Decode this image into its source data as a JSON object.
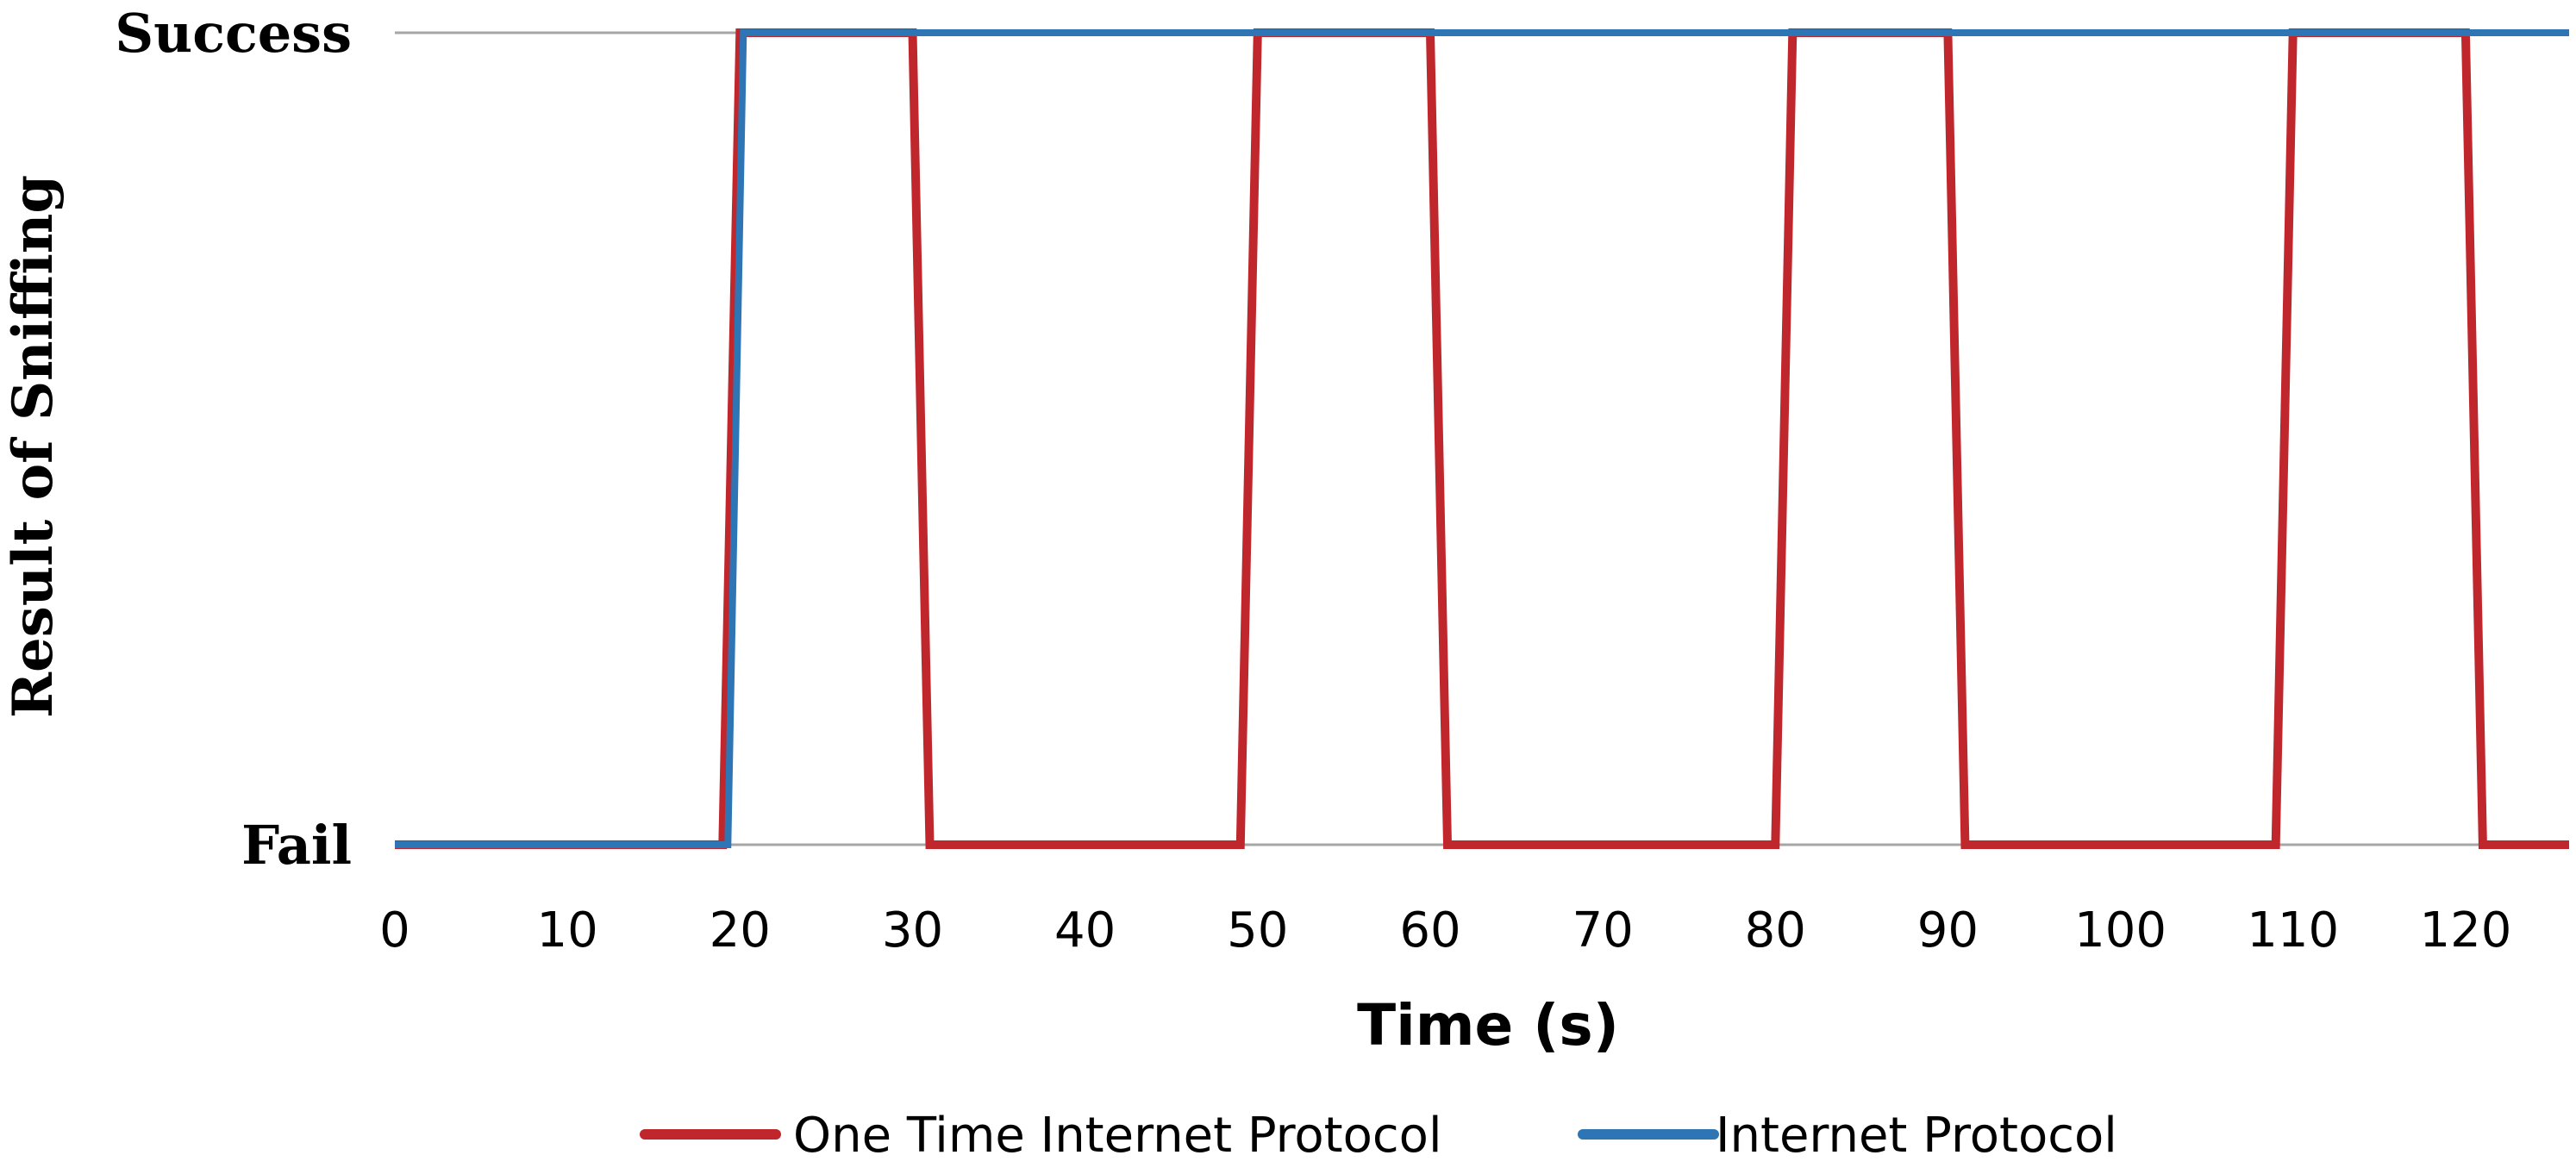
{
  "chart_data": {
    "type": "line",
    "title": "",
    "xlabel": "Time (s)",
    "ylabel": "Result of Sniffing",
    "xlim": [
      0,
      126
    ],
    "x_ticks": [
      "0",
      "10",
      "20",
      "30",
      "40",
      "50",
      "60",
      "70",
      "80",
      "90",
      "100",
      "110",
      "120"
    ],
    "y_categories": [
      "Fail",
      "Success"
    ],
    "ylim": [
      0,
      1
    ],
    "grid": "horizontal",
    "legend_position": "bottom",
    "series": [
      {
        "name": "One Time Internet Protocol",
        "color": "#c0272d",
        "points": [
          [
            0,
            0
          ],
          [
            19,
            0
          ],
          [
            20,
            1
          ],
          [
            30,
            1
          ],
          [
            31,
            0
          ],
          [
            49,
            0
          ],
          [
            50,
            1
          ],
          [
            60,
            1
          ],
          [
            61,
            0
          ],
          [
            80,
            0
          ],
          [
            81,
            1
          ],
          [
            90,
            1
          ],
          [
            91,
            0
          ],
          [
            109,
            0
          ],
          [
            110,
            1
          ],
          [
            120,
            1
          ],
          [
            121,
            0
          ],
          [
            126,
            0
          ]
        ]
      },
      {
        "name": "Internet Protocol",
        "color": "#2e75b6",
        "points": [
          [
            0,
            0
          ],
          [
            19.3,
            0
          ],
          [
            20.2,
            1
          ],
          [
            126,
            1
          ]
        ]
      }
    ]
  }
}
